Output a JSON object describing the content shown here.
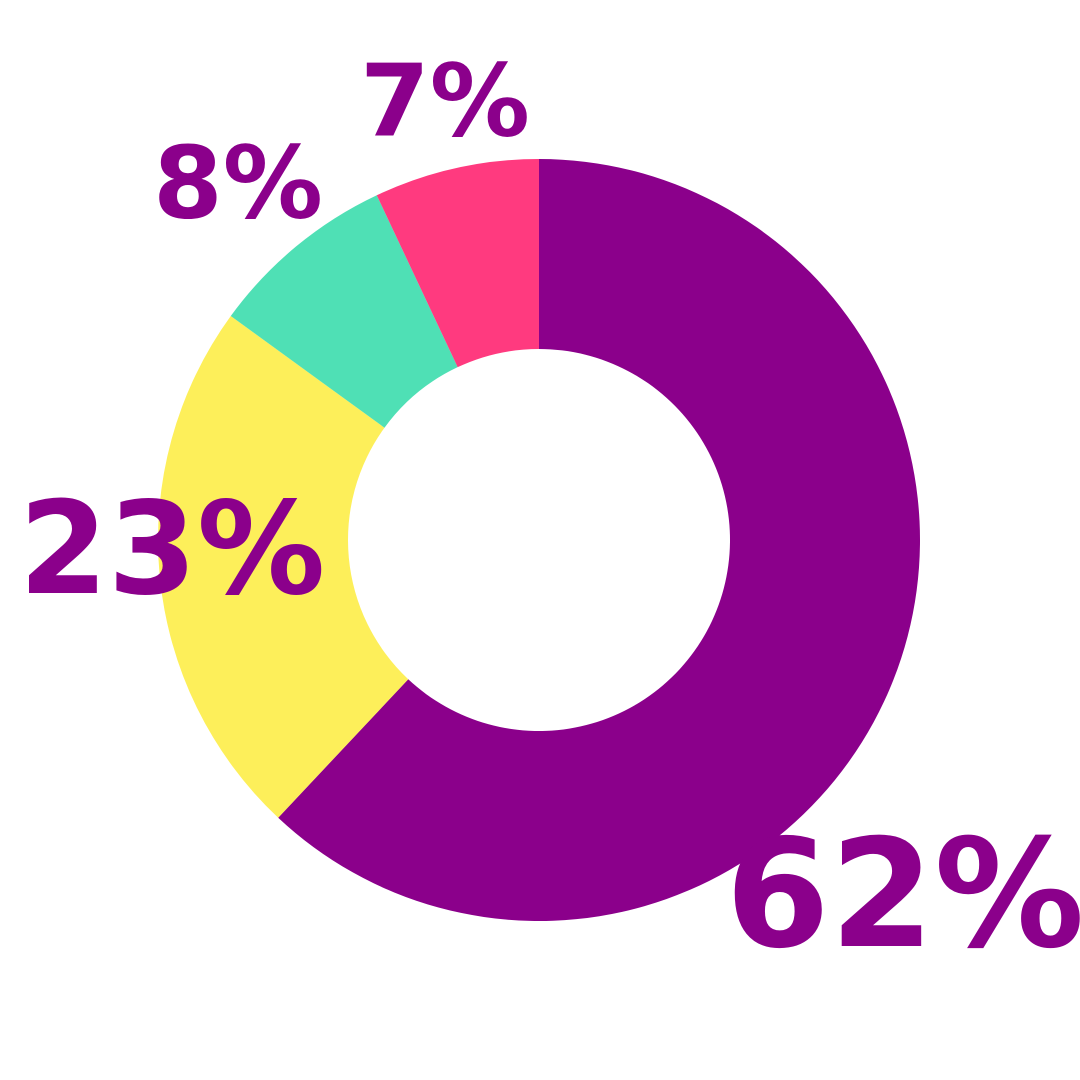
{
  "chart_data": {
    "type": "donut",
    "values": [
      62,
      23,
      8,
      7
    ],
    "value_labels": [
      "62%",
      "23%",
      "8%",
      "7%"
    ],
    "colors": [
      "#8b008b",
      "#fdef5a",
      "#4fe0b5",
      "#ff3a7f"
    ]
  }
}
